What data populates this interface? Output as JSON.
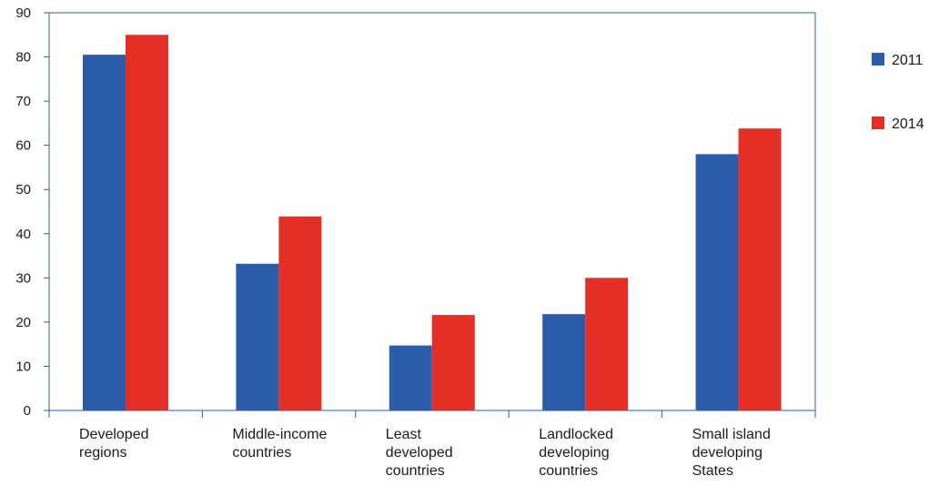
{
  "chart_data": {
    "type": "bar",
    "categories": [
      [
        "Developed",
        "regions"
      ],
      [
        "Middle-income",
        "countries"
      ],
      [
        "Least",
        "developed",
        "countries"
      ],
      [
        "Landlocked",
        "developing",
        "countries"
      ],
      [
        "Small island",
        "developing",
        "States"
      ]
    ],
    "series": [
      {
        "name": "2011",
        "color": "#2a5caa",
        "values": [
          80.5,
          33.2,
          14.7,
          21.8,
          58.0
        ]
      },
      {
        "name": "2014",
        "color": "#e42f27",
        "values": [
          85.0,
          43.9,
          21.6,
          30.0,
          63.8
        ]
      }
    ],
    "yticks": [
      0,
      10,
      20,
      30,
      40,
      50,
      60,
      70,
      80,
      90
    ],
    "ylim": [
      0,
      90
    ],
    "legend_position": "top-right",
    "frame_color": "#2a5caa",
    "grid": false
  }
}
